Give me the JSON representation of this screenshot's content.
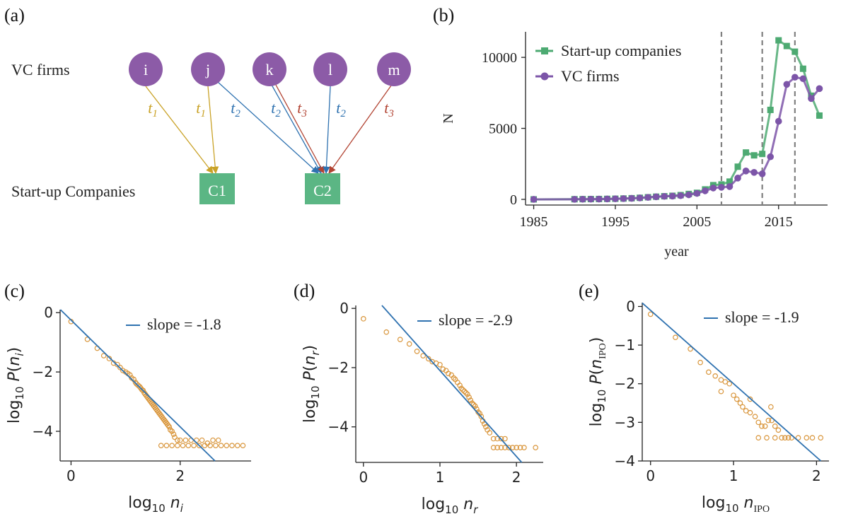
{
  "colors": {
    "vc": "#8c5ba7",
    "startup": "#5bb684",
    "green_line": "#4daa72",
    "purple_line": "#7c55a8",
    "orange": "#d9963c",
    "blue": "#2f72b0",
    "yellow": "#c9a227",
    "red": "#b24433",
    "dashed": "#808080"
  },
  "panel_a": {
    "label": "(a)",
    "vc_row_label": "VC firms",
    "startup_row_label": "Start-up Companies",
    "vc_nodes": [
      "i",
      "j",
      "k",
      "l",
      "m"
    ],
    "startups": [
      "C1",
      "C2"
    ],
    "edges": [
      {
        "from": "i",
        "to": "C1",
        "t": "t",
        "sub": "1",
        "color": "yellow"
      },
      {
        "from": "j",
        "to": "C1",
        "t": "t",
        "sub": "1",
        "color": "yellow"
      },
      {
        "from": "j",
        "to": "C2",
        "t": "t",
        "sub": "2",
        "color": "blue"
      },
      {
        "from": "k",
        "to": "C2",
        "t": "t",
        "sub": "2",
        "color": "blue"
      },
      {
        "from": "k",
        "to": "C2",
        "t": "t",
        "sub": "3",
        "color": "red"
      },
      {
        "from": "l",
        "to": "C2",
        "t": "t",
        "sub": "2",
        "color": "blue"
      },
      {
        "from": "m",
        "to": "C2",
        "t": "t",
        "sub": "3",
        "color": "red"
      }
    ]
  },
  "chart_data": [
    {
      "panel": "(b)",
      "type": "line",
      "xlabel": "year",
      "ylabel": "N",
      "xlim": [
        1984,
        2021
      ],
      "ylim": [
        -400,
        11800
      ],
      "xticks": [
        "1985",
        "1995",
        "2005",
        "2015"
      ],
      "yticks": [
        "0",
        "5000",
        "10000"
      ],
      "legend_position": "top-left",
      "vlines": [
        2008,
        2013,
        2017
      ],
      "x": [
        1985,
        1990,
        1991,
        1992,
        1993,
        1994,
        1995,
        1996,
        1997,
        1998,
        1999,
        2000,
        2001,
        2002,
        2003,
        2004,
        2005,
        2006,
        2007,
        2008,
        2009,
        2010,
        2011,
        2012,
        2013,
        2014,
        2015,
        2016,
        2017,
        2018,
        2019,
        2020
      ],
      "series": [
        {
          "name": "Start-up companies",
          "color": "green_line",
          "marker": "square",
          "values": [
            0,
            10,
            15,
            20,
            25,
            35,
            45,
            60,
            80,
            110,
            150,
            190,
            220,
            250,
            300,
            380,
            460,
            700,
            1000,
            1050,
            1250,
            2300,
            3300,
            3100,
            3200,
            6300,
            11200,
            10800,
            10400,
            9200,
            7300,
            5900
          ]
        },
        {
          "name": "VC firms",
          "color": "purple_line",
          "marker": "circle",
          "values": [
            0,
            5,
            10,
            15,
            20,
            30,
            40,
            55,
            70,
            100,
            140,
            180,
            210,
            230,
            260,
            320,
            420,
            600,
            800,
            850,
            900,
            1500,
            2000,
            1900,
            1800,
            3000,
            5500,
            8100,
            8600,
            8500,
            7100,
            7800
          ]
        }
      ]
    },
    {
      "panel": "(c)",
      "type": "scatter",
      "xlabel": "log10 n_i",
      "ylabel": "log10 P(n_i)",
      "xlim": [
        -0.2,
        3.3
      ],
      "ylim": [
        -5.0,
        0.1
      ],
      "xticks": [
        "0",
        "2"
      ],
      "yticks": [
        "0",
        "−2",
        "−4"
      ],
      "legend_position": "top-right",
      "fit": {
        "name": "slope = -1.8",
        "slope": -1.8,
        "intercept": -0.25
      },
      "points": [
        [
          0,
          -0.3
        ],
        [
          0.3,
          -0.9
        ],
        [
          0.48,
          -1.2
        ],
        [
          0.6,
          -1.45
        ],
        [
          0.7,
          -1.55
        ],
        [
          0.78,
          -1.7
        ],
        [
          0.85,
          -1.75
        ],
        [
          0.9,
          -1.85
        ],
        [
          0.95,
          -1.95
        ],
        [
          1.0,
          -2.0
        ],
        [
          1.04,
          -2.05
        ],
        [
          1.08,
          -2.1
        ],
        [
          1.11,
          -2.2
        ],
        [
          1.15,
          -2.25
        ],
        [
          1.18,
          -2.35
        ],
        [
          1.2,
          -2.4
        ],
        [
          1.23,
          -2.45
        ],
        [
          1.26,
          -2.5
        ],
        [
          1.28,
          -2.55
        ],
        [
          1.3,
          -2.6
        ],
        [
          1.32,
          -2.62
        ],
        [
          1.34,
          -2.7
        ],
        [
          1.36,
          -2.75
        ],
        [
          1.38,
          -2.8
        ],
        [
          1.4,
          -2.85
        ],
        [
          1.42,
          -2.9
        ],
        [
          1.44,
          -2.95
        ],
        [
          1.46,
          -3.0
        ],
        [
          1.48,
          -3.05
        ],
        [
          1.5,
          -3.1
        ],
        [
          1.52,
          -3.15
        ],
        [
          1.54,
          -3.2
        ],
        [
          1.56,
          -3.25
        ],
        [
          1.58,
          -3.3
        ],
        [
          1.6,
          -3.35
        ],
        [
          1.62,
          -3.4
        ],
        [
          1.64,
          -3.45
        ],
        [
          1.66,
          -3.5
        ],
        [
          1.68,
          -3.55
        ],
        [
          1.7,
          -3.6
        ],
        [
          1.72,
          -3.65
        ],
        [
          1.74,
          -3.7
        ],
        [
          1.76,
          -3.75
        ],
        [
          1.78,
          -3.8
        ],
        [
          1.8,
          -3.85
        ],
        [
          1.82,
          -3.95
        ],
        [
          1.85,
          -4.0
        ],
        [
          1.88,
          -4.1
        ],
        [
          1.9,
          -4.2
        ],
        [
          1.95,
          -4.3
        ],
        [
          2.0,
          -4.3
        ],
        [
          2.1,
          -4.3
        ],
        [
          2.2,
          -4.3
        ],
        [
          2.3,
          -4.3
        ],
        [
          2.4,
          -4.3
        ],
        [
          2.6,
          -4.3
        ],
        [
          2.7,
          -4.3
        ],
        [
          2.5,
          -4.4
        ],
        [
          1.65,
          -4.48
        ],
        [
          1.75,
          -4.48
        ],
        [
          1.85,
          -4.48
        ],
        [
          1.95,
          -4.48
        ],
        [
          2.05,
          -4.48
        ],
        [
          2.15,
          -4.48
        ],
        [
          2.25,
          -4.48
        ],
        [
          2.35,
          -4.48
        ],
        [
          2.45,
          -4.48
        ],
        [
          2.55,
          -4.48
        ],
        [
          2.65,
          -4.48
        ],
        [
          2.75,
          -4.48
        ],
        [
          2.85,
          -4.48
        ],
        [
          2.95,
          -4.48
        ],
        [
          3.05,
          -4.48
        ],
        [
          3.15,
          -4.48
        ]
      ]
    },
    {
      "panel": "(d)",
      "type": "scatter",
      "xlabel": "log10 n_r",
      "ylabel": "log10 P(n_r)",
      "xlim": [
        -0.1,
        2.35
      ],
      "ylim": [
        -5.2,
        0.1
      ],
      "xticks": [
        "0",
        "1",
        "2"
      ],
      "yticks": [
        "0",
        "−2",
        "−4"
      ],
      "legend_position": "top-right",
      "fit": {
        "name": "slope = -2.9",
        "slope": -2.9,
        "intercept": 0.8
      },
      "points": [
        [
          0,
          -0.35
        ],
        [
          0.3,
          -0.8
        ],
        [
          0.48,
          -1.05
        ],
        [
          0.6,
          -1.2
        ],
        [
          0.7,
          -1.45
        ],
        [
          0.78,
          -1.6
        ],
        [
          0.85,
          -1.7
        ],
        [
          0.9,
          -1.8
        ],
        [
          0.95,
          -1.85
        ],
        [
          1.0,
          -1.9
        ],
        [
          1.04,
          -2.05
        ],
        [
          1.08,
          -2.1
        ],
        [
          1.11,
          -2.2
        ],
        [
          1.15,
          -2.25
        ],
        [
          1.18,
          -2.35
        ],
        [
          1.2,
          -2.4
        ],
        [
          1.23,
          -2.5
        ],
        [
          1.26,
          -2.6
        ],
        [
          1.28,
          -2.7
        ],
        [
          1.3,
          -2.75
        ],
        [
          1.32,
          -2.8
        ],
        [
          1.34,
          -2.85
        ],
        [
          1.36,
          -2.9
        ],
        [
          1.38,
          -3.0
        ],
        [
          1.4,
          -3.1
        ],
        [
          1.42,
          -3.2
        ],
        [
          1.44,
          -3.25
        ],
        [
          1.46,
          -3.3
        ],
        [
          1.48,
          -3.4
        ],
        [
          1.5,
          -3.5
        ],
        [
          1.52,
          -3.55
        ],
        [
          1.54,
          -3.65
        ],
        [
          1.56,
          -3.8
        ],
        [
          1.58,
          -3.9
        ],
        [
          1.6,
          -4.0
        ],
        [
          1.62,
          -4.1
        ],
        [
          1.65,
          -4.2
        ],
        [
          1.7,
          -4.4
        ],
        [
          1.75,
          -4.4
        ],
        [
          1.8,
          -4.4
        ],
        [
          1.85,
          -4.4
        ],
        [
          1.7,
          -4.7
        ],
        [
          1.75,
          -4.7
        ],
        [
          1.8,
          -4.7
        ],
        [
          1.85,
          -4.7
        ],
        [
          1.9,
          -4.7
        ],
        [
          1.95,
          -4.7
        ],
        [
          2.0,
          -4.7
        ],
        [
          2.05,
          -4.7
        ],
        [
          2.1,
          -4.7
        ],
        [
          2.25,
          -4.7
        ]
      ]
    },
    {
      "panel": "(e)",
      "type": "scatter",
      "xlabel": "log10 n_IPO",
      "ylabel": "log10 P(n_IPO)",
      "xlim": [
        -0.1,
        2.15
      ],
      "ylim": [
        -4.0,
        0.1
      ],
      "xticks": [
        "0",
        "1",
        "2"
      ],
      "yticks": [
        "0",
        "−1",
        "−2",
        "−3",
        "−4"
      ],
      "legend_position": "top-right",
      "fit": {
        "name": "slope = -1.9",
        "slope": -1.9,
        "intercept": -0.1
      },
      "points": [
        [
          0,
          -0.2
        ],
        [
          0.3,
          -0.8
        ],
        [
          0.48,
          -1.1
        ],
        [
          0.6,
          -1.45
        ],
        [
          0.7,
          -1.7
        ],
        [
          0.78,
          -1.8
        ],
        [
          0.85,
          -1.9
        ],
        [
          0.9,
          -1.95
        ],
        [
          0.95,
          -2.0
        ],
        [
          1.0,
          -2.3
        ],
        [
          1.04,
          -2.4
        ],
        [
          1.08,
          -2.5
        ],
        [
          1.11,
          -2.6
        ],
        [
          1.15,
          -2.7
        ],
        [
          1.2,
          -2.75
        ],
        [
          1.26,
          -2.85
        ],
        [
          1.3,
          -3.0
        ],
        [
          1.34,
          -3.1
        ],
        [
          1.38,
          -3.1
        ],
        [
          1.42,
          -2.95
        ],
        [
          1.46,
          -2.95
        ],
        [
          1.5,
          -3.1
        ],
        [
          1.54,
          -3.2
        ],
        [
          1.58,
          -3.4
        ],
        [
          1.62,
          -3.4
        ],
        [
          1.66,
          -3.4
        ],
        [
          1.7,
          -3.4
        ],
        [
          1.78,
          -3.4
        ],
        [
          1.88,
          -3.4
        ],
        [
          1.95,
          -3.4
        ],
        [
          2.05,
          -3.4
        ],
        [
          1.3,
          -3.4
        ],
        [
          1.4,
          -3.4
        ],
        [
          1.5,
          -3.4
        ],
        [
          0.85,
          -2.2
        ],
        [
          1.2,
          -2.4
        ],
        [
          1.45,
          -2.6
        ]
      ]
    }
  ]
}
